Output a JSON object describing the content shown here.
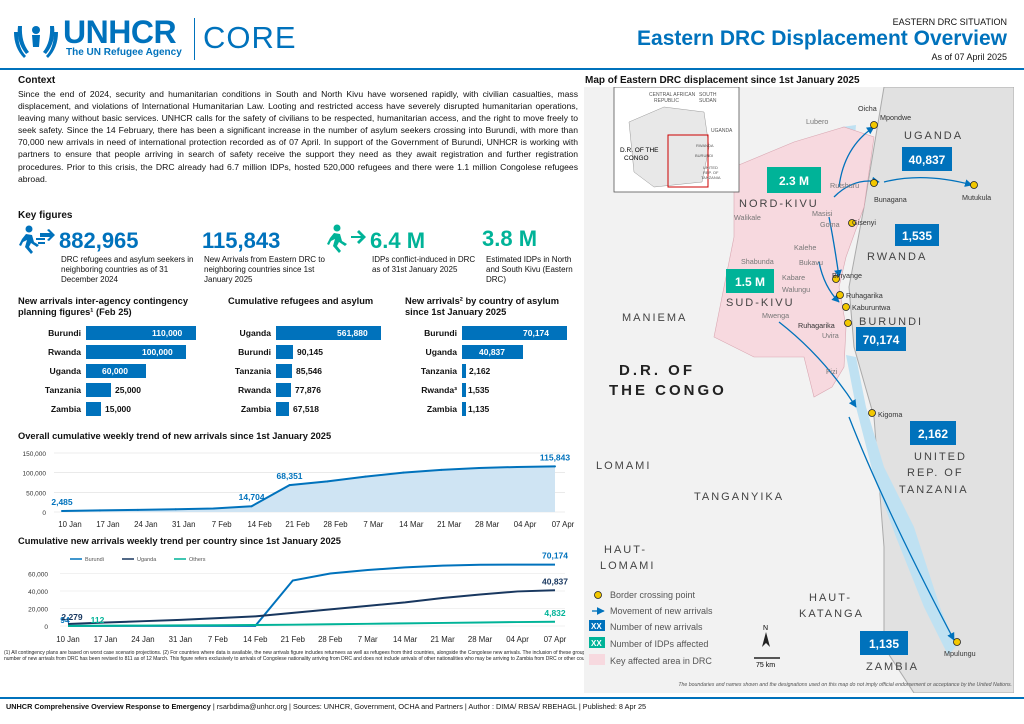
{
  "header": {
    "logo_text": "UNHCR",
    "logo_sub": "The UN Refugee Agency",
    "core": "CORE",
    "situation": "EASTERN DRC SITUATION",
    "title": "Eastern DRC Displacement Overview",
    "date": "As of  07 April 2025"
  },
  "context": {
    "heading": "Context",
    "text": "Since the end of 2024, security and humanitarian conditions in South and North Kivu have worsened rapidly, with civilian casualties, mass displacement, and violations of International Humanitarian Law. Looting and restricted access have severely disrupted humanitarian operations, leaving many without basic services. UNHCR calls for the safety of civilians to be respected, humanitarian access, and the right to move freely to seek safety. Since the 14 February, there has been a significant increase in the number of asylum seekers crossing into Burundi, with more than 70,000 new arrivals in need of international protection recorded as of 07 April. In support of the Government of Burundi, UNHCR is working with partners to ensure that people arriving in search of safety receive the support they need as they await registration and further registration procedures. Prior to this crisis, the DRC already had 6.7 million IDPs, hosted 520,000 refugees and there were 1.1 million Congolese refugees abroad."
  },
  "key_figures": {
    "heading": "Key figures",
    "items": [
      {
        "value": "882,965",
        "label": "DRC refugees and asylum seekers in neighboring countries as of 31 December 2024"
      },
      {
        "value": "115,843",
        "label": "New Arrivals from Eastern DRC to neighboring countries since 1st January 2025"
      },
      {
        "value": "6.4 M",
        "label": "IDPs conflict-induced in DRC as of 31st January 2025"
      },
      {
        "value": "3.8 M",
        "label": "Estimated IDPs in North and South Kivu (Eastern DRC)"
      }
    ]
  },
  "chart_data": [
    {
      "type": "bar",
      "title": "New arrivals inter-agency contingency planning figures¹ (Feb 25)",
      "categories": [
        "Burundi",
        "Rwanda",
        "Uganda",
        "Tanzania",
        "Zambia"
      ],
      "values": [
        110000,
        100000,
        60000,
        25000,
        15000
      ],
      "labels": [
        "110,000",
        "100,000",
        "60,000",
        "25,000",
        "15,000"
      ]
    },
    {
      "type": "bar",
      "title": "Cumulative refugees and asylum",
      "categories": [
        "Uganda",
        "Burundi",
        "Tanzania",
        "Rwanda",
        "Zambia"
      ],
      "values": [
        561880,
        90145,
        85546,
        77876,
        67518
      ],
      "labels": [
        "561,880",
        "90,145",
        "85,546",
        "77,876",
        "67,518"
      ]
    },
    {
      "type": "bar",
      "title": "New arrivals² by country of asylum since 1st January 2025",
      "categories": [
        "Burundi",
        "Uganda",
        "Tanzania",
        "Rwanda³",
        "Zambia"
      ],
      "values": [
        70174,
        40837,
        2162,
        1535,
        1135
      ],
      "labels": [
        "70,174",
        "40,837",
        "2,162",
        "1,535",
        "1,135"
      ]
    },
    {
      "type": "area",
      "title": "Overall cumulative weekly trend of new arrivals since 1st January 2025",
      "x": [
        "10 Jan",
        "17 Jan",
        "24 Jan",
        "31 Jan",
        "7 Feb",
        "14 Feb",
        "21 Feb",
        "28 Feb",
        "7 Mar",
        "14 Mar",
        "21 Mar",
        "28 Mar",
        "04 Apr",
        "07 Apr"
      ],
      "values": [
        2485,
        4000,
        5500,
        7000,
        9000,
        14704,
        68351,
        78000,
        90000,
        100000,
        107000,
        112000,
        114500,
        115843
      ],
      "yticks": [
        "150,000",
        "100,000",
        "50,000",
        "0"
      ],
      "ylim": [
        0,
        150000
      ],
      "point_labels": [
        {
          "i": 0,
          "text": "2,485"
        },
        {
          "i": 5,
          "text": "14,704"
        },
        {
          "i": 6,
          "text": "68,351"
        },
        {
          "i": 13,
          "text": "115,843"
        }
      ]
    },
    {
      "type": "line",
      "title": "Cumulative new arrivals weekly trend per country since 1st January 2025",
      "x": [
        "10 Jan",
        "17 Jan",
        "24 Jan",
        "31 Jan",
        "7 Feb",
        "14 Feb",
        "21 Feb",
        "28 Feb",
        "7 Mar",
        "14 Mar",
        "21 Mar",
        "28 Mar",
        "04 Apr",
        "07 Apr"
      ],
      "ylim": [
        0,
        80000
      ],
      "yticks": [
        "60,000",
        "40,000",
        "20,000",
        "0"
      ],
      "series": [
        {
          "name": "Burundi",
          "color": "#0072bc",
          "values": [
            94,
            94,
            94,
            94,
            94,
            94,
            52000,
            60000,
            64000,
            67000,
            69000,
            70000,
            70174,
            70174
          ]
        },
        {
          "name": "Uganda",
          "color": "#18375f",
          "values": [
            2279,
            4000,
            5500,
            7000,
            9000,
            11000,
            15000,
            19000,
            23000,
            27000,
            32000,
            36000,
            39500,
            40837
          ]
        },
        {
          "name": "Others",
          "color": "#00b398",
          "values": [
            112,
            300,
            500,
            700,
            900,
            1100,
            1500,
            2000,
            2500,
            3000,
            3500,
            4000,
            4500,
            4832
          ]
        }
      ],
      "point_labels": [
        "94",
        "2,279",
        "112",
        "70,174",
        "40,837",
        "4,832"
      ]
    }
  ],
  "map": {
    "title": "Map of Eastern DRC displacement since 1st January 2025",
    "inset": {
      "drc": "D.R. OF THE CONGO",
      "countries": [
        "CENTRAL AFRICAN REPUBLIC",
        "SOUTH SUDAN",
        "UGANDA",
        "RWANDA",
        "BURUNDI",
        "UNITED REP. OF TANZANIA"
      ]
    },
    "regions": [
      "NORD-KIVU",
      "SUD-KIVU",
      "MANIEMA",
      "D.R. OF",
      "THE CONGO",
      "LOMAMI",
      "HAUT-",
      "LOMAMI",
      "TANGANYIKA",
      "HAUT-",
      "KATANGA",
      "UGANDA",
      "RWANDA",
      "BURUNDI",
      "UNITED",
      "REP. OF",
      "TANZANIA",
      "ZAMBIA"
    ],
    "places": [
      "Lubero",
      "Oicha",
      "Mpondwe",
      "Rutshuru",
      "Bunagana",
      "Mutukula",
      "Walikale",
      "Masisi",
      "Goma",
      "Gisenyi",
      "Kalehe",
      "Shabunda",
      "Kabare",
      "Walungu",
      "Bukavu",
      "Binyange",
      "Mwenga",
      "Ruhagarika",
      "Kaburuntwa",
      "Uvira",
      "Fizi",
      "Kigoma",
      "Mpulungu",
      "Ruhagarika"
    ],
    "badges": {
      "idp_nk": "2.3 M",
      "idp_sk": "1.5 M",
      "uganda": "40,837",
      "rwanda": "1,535",
      "burundi": "70,174",
      "tanzania": "2,162",
      "zambia": "1,135"
    },
    "legend": [
      "Border crossing point",
      "Movement of new arrivals",
      "Number of new arrivals",
      "Number of IDPs affected",
      "Key affected area in DRC"
    ],
    "legend_xx": "XX",
    "scale": "75 km",
    "north": "N",
    "disclaimer": "The boundaries and names shown and the designations used on this map do not imply official endorsement or acceptance by the United Nations."
  },
  "footnote": "(1) All contingency plans are based on worst case scenario projections. (2) For countries where data is available, the new arrivals figure includes returnees as well as refugees from third countries, alongside the Congolese new arrivals. The inclusion of these group reflects that returnees populations and third country nationals may also have specific international protection and humanitarian needs. (3) Based on a review of data from Zambia, the number of new arrivals from DRC has been revised to 811 as of 12 March. This figure refers exclusively to arrivals of Congolese nationality arriving from DRC and does not include arrivals of other nationalities who may be arriving to Zambia from DRC or other countries. Disaggregated data on third country nationals arriving directly from DRC to Zambia is not currently available",
  "bottom": {
    "bold": "UNHCR Comprehensive Overview Response to Emergency",
    "rest": " | rsarbdima@unhcr.org | Sources: UNHCR, Government, OCHA and Partners | Author : DIMA/ RBSA/ RBEHAGL | Published: 8 Apr 25"
  }
}
